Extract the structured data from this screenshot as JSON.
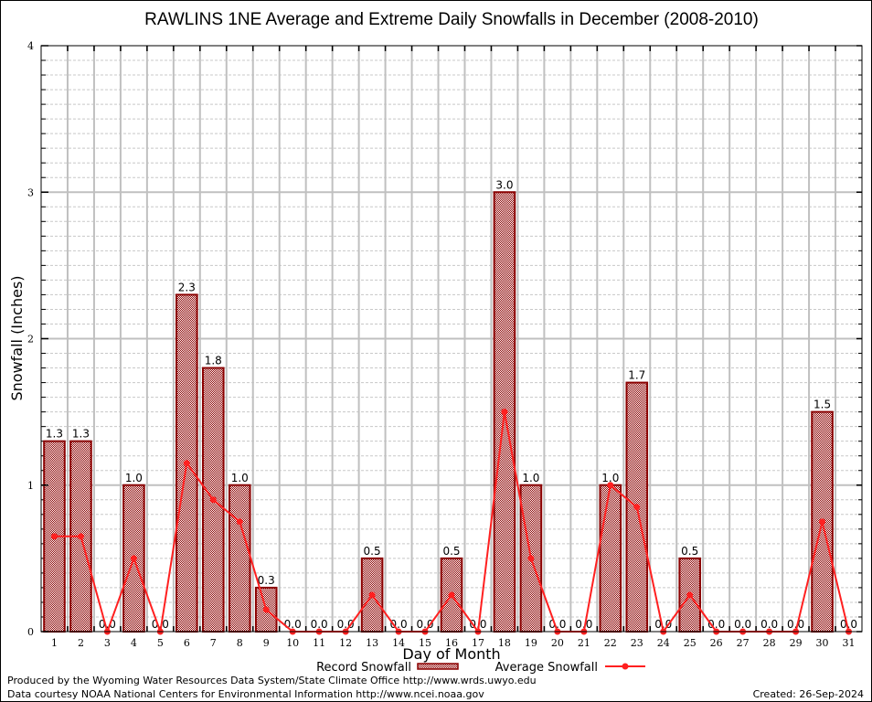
{
  "chart_data": {
    "type": "bar",
    "title": "RAWLINS 1NE Average and Extreme Daily Snowfalls in December (2008-2010)",
    "xlabel": "Day of Month",
    "ylabel": "Snowfall (Inches)",
    "ylim": [
      0,
      4
    ],
    "yticks": [
      "0",
      "1",
      "2",
      "3",
      "4"
    ],
    "minor_grid_step": 0.1,
    "grid": true,
    "categories": [
      "1",
      "2",
      "3",
      "4",
      "5",
      "6",
      "7",
      "8",
      "9",
      "10",
      "11",
      "12",
      "13",
      "14",
      "15",
      "16",
      "17",
      "18",
      "19",
      "20",
      "21",
      "22",
      "23",
      "24",
      "25",
      "26",
      "27",
      "28",
      "29",
      "30",
      "31"
    ],
    "series": [
      {
        "name": "Record Snowfall",
        "kind": "bar",
        "color": "#8b0000",
        "values": [
          1.3,
          1.3,
          0.0,
          1.0,
          0.0,
          2.3,
          1.8,
          1.0,
          0.3,
          0.0,
          0.0,
          0.0,
          0.5,
          0.0,
          0.0,
          0.5,
          0.0,
          3.0,
          1.0,
          0.0,
          0.0,
          1.0,
          1.7,
          0.0,
          0.5,
          0.0,
          0.0,
          0.0,
          0.0,
          1.5,
          0.0
        ],
        "labels": [
          "1.3",
          "1.3",
          "0.0",
          "1.0",
          "0.0",
          "2.3",
          "1.8",
          "1.0",
          "0.3",
          "0.0",
          "0.0",
          "0.0",
          "0.5",
          "0.0",
          "0.0",
          "0.5",
          "0.0",
          "3.0",
          "1.0",
          "0.0",
          "0.0",
          "1.0",
          "1.7",
          "0.0",
          "0.5",
          "0.0",
          "0.0",
          "0.0",
          "0.0",
          "1.5",
          "0.0"
        ]
      },
      {
        "name": "Average Snowfall",
        "kind": "line",
        "color": "#ff2020",
        "values": [
          0.65,
          0.65,
          0.0,
          0.5,
          0.0,
          1.15,
          0.9,
          0.75,
          0.15,
          0.0,
          0.0,
          0.0,
          0.25,
          0.0,
          0.0,
          0.25,
          0.0,
          1.5,
          0.5,
          0.0,
          0.0,
          1.0,
          0.85,
          0.0,
          0.25,
          0.0,
          0.0,
          0.0,
          0.0,
          0.75,
          0.0
        ]
      }
    ],
    "legend": "bottom-center"
  },
  "footer": {
    "line1": "Produced by the Wyoming Water Resources Data System/State Climate Office http://www.wrds.uwyo.edu",
    "line2": "Data courtesy NOAA National Centers for Environmental Information http://www.ncei.noaa.gov",
    "created": "Created:  26-Sep-2024"
  }
}
